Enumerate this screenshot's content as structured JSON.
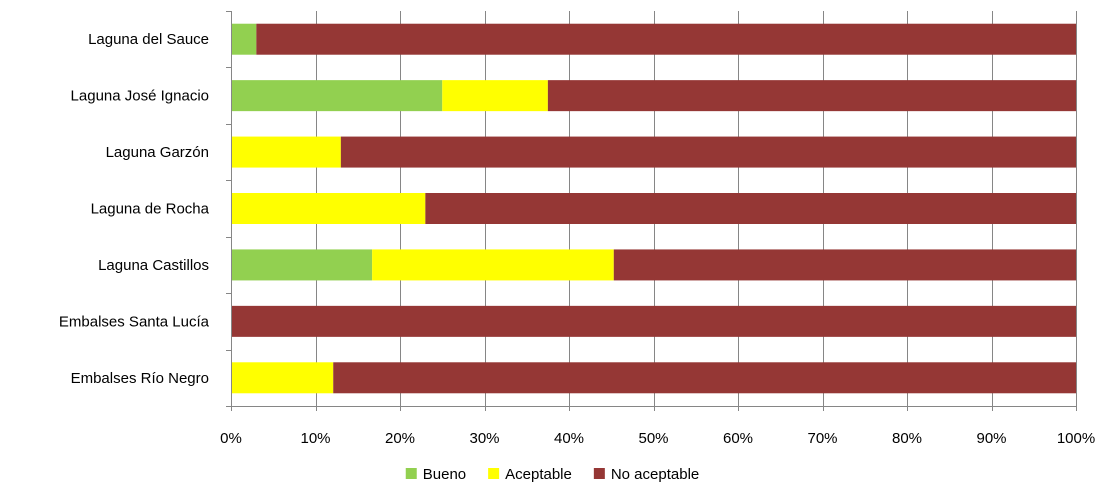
{
  "chart_data": {
    "type": "bar",
    "orientation": "horizontal",
    "stacked": "percent",
    "categories": [
      "Laguna del Sauce",
      "Laguna José Ignacio",
      "Laguna Garzón",
      "Laguna de Rocha",
      "Laguna Castillos",
      "Embalses Santa Lucía",
      "Embalses Río Negro"
    ],
    "series": [
      {
        "name": "Bueno",
        "color": "#92d050",
        "values": [
          3,
          25,
          0,
          0,
          16.7,
          0,
          0
        ]
      },
      {
        "name": "Aceptable",
        "color": "#ffff00",
        "values": [
          0,
          12.5,
          13,
          23,
          28.6,
          0,
          12.1
        ]
      },
      {
        "name": "No aceptable",
        "color": "#953735",
        "values": [
          97,
          62.5,
          87,
          77,
          54.7,
          100,
          87.9
        ]
      }
    ],
    "xlim": [
      0,
      100
    ],
    "xticks": [
      0,
      10,
      20,
      30,
      40,
      50,
      60,
      70,
      80,
      90,
      100
    ],
    "xtick_labels": [
      "0%",
      "10%",
      "20%",
      "30%",
      "40%",
      "50%",
      "60%",
      "70%",
      "80%",
      "90%",
      "100%"
    ],
    "grid": "vertical",
    "legend_position": "bottom",
    "title": "",
    "xlabel": "",
    "ylabel": ""
  }
}
